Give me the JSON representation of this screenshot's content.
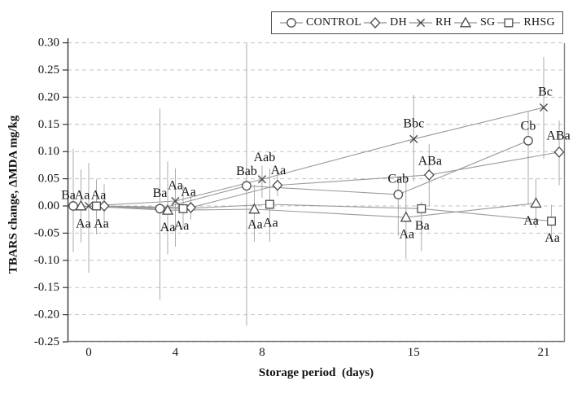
{
  "legend": {
    "items": [
      {
        "label": "CONTROL",
        "marker": "circle"
      },
      {
        "label": "DH",
        "marker": "diamond"
      },
      {
        "label": "RH",
        "marker": "x"
      },
      {
        "label": "SG",
        "marker": "triangle"
      },
      {
        "label": "RHSG",
        "marker": "square"
      }
    ]
  },
  "axes": {
    "x_title": "Storage period  (days)",
    "y_title": "TBARS change, ΔMDA mg/kg",
    "x_ticks": [
      0,
      4,
      8,
      15,
      21
    ],
    "y_ticks": [
      "0.30",
      "0.25",
      "0.20",
      "0.15",
      "0.10",
      "0.05",
      "0.00",
      "-0.05",
      "-0.10",
      "-0.15",
      "-0.20",
      "-0.25"
    ],
    "y_min": -0.25,
    "y_max": 0.3,
    "grid": "horizontal-dashed"
  },
  "chart_data": {
    "type": "line",
    "x": [
      0,
      4,
      8,
      15,
      21
    ],
    "xlabel": "Storage period  (days)",
    "ylabel": "TBARS change, ΔMDA mg/kg",
    "ylim": [
      -0.25,
      0.3
    ],
    "legend_position": "top",
    "series": [
      {
        "name": "CONTROL",
        "marker": "circle",
        "values": [
          0.0,
          -0.005,
          0.037,
          0.021,
          0.12
        ],
        "error_up": [
          0.105,
          0.184,
          0.262,
          0.033,
          0.054
        ],
        "error_down": [
          0.085,
          0.168,
          0.257,
          0.076,
          0.118
        ],
        "point_labels": [
          "Ba",
          "Ba",
          "Bab",
          "Cab",
          "Cb"
        ],
        "label_offsets": [
          [
            -6,
            -13
          ],
          [
            0,
            -19
          ],
          [
            0,
            -18
          ],
          [
            0,
            -19
          ],
          [
            0,
            -18
          ]
        ]
      },
      {
        "name": "DH",
        "marker": "diamond",
        "values": [
          0.0,
          -0.003,
          0.038,
          0.057,
          0.099
        ],
        "error_up": [
          0.04,
          0.022,
          0.02,
          0.057,
          0.058
        ],
        "error_down": [
          0.04,
          0.022,
          0.02,
          0.057,
          0.061
        ],
        "point_labels": [
          "Aa",
          "Aa",
          "Aa",
          "ABa",
          "ABa"
        ],
        "label_offsets": [
          [
            -7,
            -13
          ],
          [
            -3,
            -19
          ],
          [
            1,
            -18
          ],
          [
            1,
            -17
          ],
          [
            -1,
            -20
          ]
        ]
      },
      {
        "name": "RH",
        "marker": "x",
        "values": [
          0.0,
          0.009,
          0.049,
          0.123,
          0.181
        ],
        "error_up": [
          0.079,
          0.06,
          0.025,
          0.081,
          0.093
        ],
        "error_down": [
          0.123,
          0.084,
          0.034,
          0.078,
          0.094
        ],
        "point_labels": [
          "Aa",
          "Aa",
          "Aab",
          "Bbc",
          "Bc"
        ],
        "label_offsets": [
          [
            -8,
            -13
          ],
          [
            0,
            -19
          ],
          [
            3,
            -27
          ],
          [
            0,
            -19
          ],
          [
            2,
            -19
          ]
        ]
      },
      {
        "name": "SG",
        "marker": "triangle",
        "values": [
          0.0,
          -0.008,
          -0.006,
          -0.021,
          0.005
        ],
        "error_up": [
          0.067,
          0.09,
          0.045,
          0.07,
          0.045
        ],
        "error_down": [
          0.067,
          0.081,
          0.06,
          0.076,
          0.045
        ],
        "point_labels": [
          "Aa",
          "Aa",
          "Aa",
          "Aa",
          "Aa"
        ],
        "label_offsets": [
          [
            3,
            22
          ],
          [
            0,
            21
          ],
          [
            1,
            19
          ],
          [
            1,
            21
          ],
          [
            -6,
            22
          ]
        ]
      },
      {
        "name": "RHSG",
        "marker": "square",
        "values": [
          0.0,
          -0.005,
          0.003,
          -0.005,
          -0.028
        ],
        "error_up": [
          0.049,
          0.043,
          0.066,
          0.013,
          0.03
        ],
        "error_down": [
          0.052,
          0.036,
          0.069,
          0.078,
          0.03
        ],
        "point_labels": [
          "Aa",
          "Aa",
          "Aa",
          "Ba",
          "Aa"
        ],
        "label_offsets": [
          [
            6,
            22
          ],
          [
            -2,
            21
          ],
          [
            1,
            23
          ],
          [
            1,
            21
          ],
          [
            1,
            21
          ]
        ]
      }
    ]
  },
  "colors": {
    "line": "#9a9a9a",
    "marker_stroke": "#4c4c4c",
    "error_bar": "#ababab",
    "grid": "#c3c3c3",
    "axis": "#808080",
    "axis_left": "#333333",
    "text": "#141414",
    "legend_border": "#4c4c4c",
    "background": "#ffffff"
  }
}
